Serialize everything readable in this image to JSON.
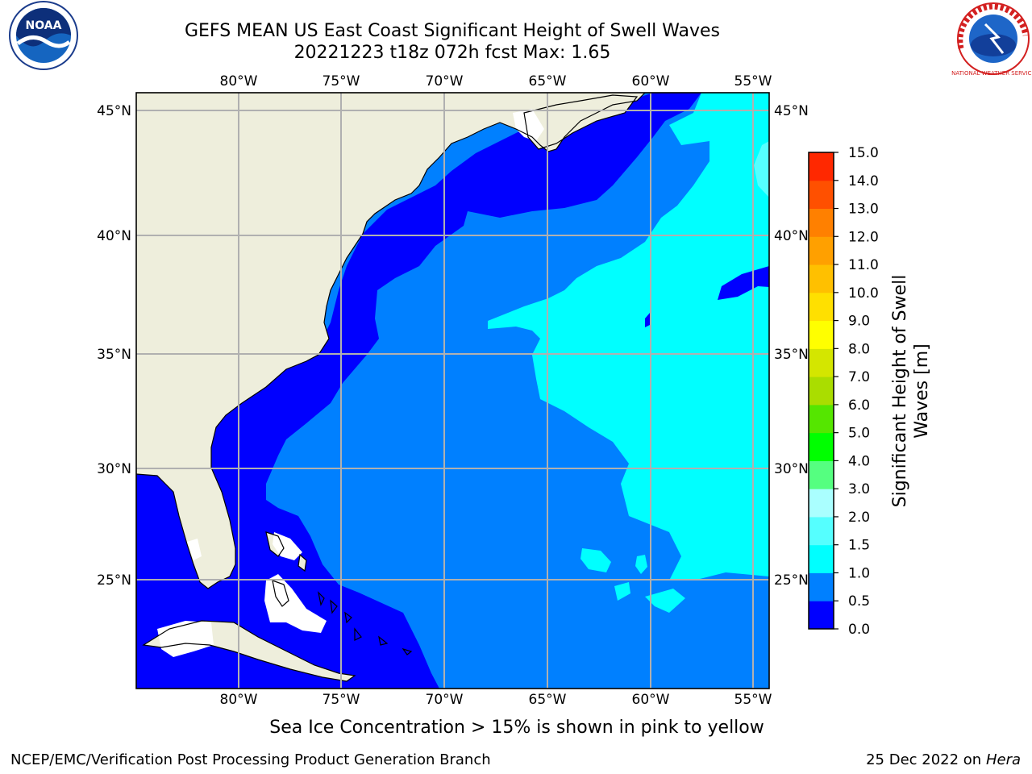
{
  "title": {
    "line1": "GEFS MEAN US East Coast Significant Height of Swell Waves",
    "line2": "20221223 t18z 072h fcst    Max: 1.65"
  },
  "map": {
    "lon_labels": [
      "80°W",
      "75°W",
      "70°W",
      "65°W",
      "60°W",
      "55°W"
    ],
    "lat_labels": [
      "45°N",
      "40°N",
      "35°N",
      "30°N",
      "25°N"
    ],
    "land_color": "#eeeedc",
    "coast_color": "#000000",
    "grid_color": "#b0b0b0"
  },
  "colorbar": {
    "label_line1": "Significant Height of Swell",
    "label_line2": "Waves [m]",
    "tick_labels": [
      "0.0",
      "0.5",
      "1.0",
      "1.5",
      "2.0",
      "3.0",
      "4.0",
      "5.0",
      "6.0",
      "7.0",
      "8.0",
      "9.0",
      "10.0",
      "11.0",
      "12.0",
      "13.0",
      "14.0",
      "15.0"
    ],
    "colors": [
      "#0000ff",
      "#0080ff",
      "#00ffff",
      "#55ffff",
      "#aaffff",
      "#55ff80",
      "#00ff00",
      "#55e600",
      "#aadd00",
      "#d4e600",
      "#ffff00",
      "#ffe000",
      "#ffc000",
      "#ffa000",
      "#ff8000",
      "#ff5000",
      "#ff2800",
      "#ff0000"
    ]
  },
  "field_colors": {
    "band_0_0_5": "#0000ff",
    "band_0_5_1_0": "#0080ff",
    "band_1_0_1_5": "#00ffff",
    "band_1_5_2_0": "#55ffff"
  },
  "logos": {
    "noaa_text": "NOAA",
    "nws_text": "NATIONAL WEATHER SERVICE"
  },
  "footer": {
    "note": "Sea Ice Concentration > 15% is shown in pink to yellow",
    "branch": "NCEP/EMC/Verification Post Processing Product Generation Branch",
    "date": "25 Dec 2022 on",
    "machine": "Hera"
  }
}
